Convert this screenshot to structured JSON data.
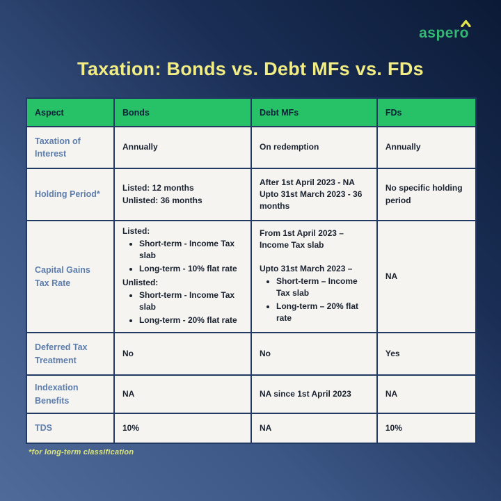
{
  "logo": {
    "text": "aspero",
    "caret_icon": "chevron-up"
  },
  "title": "Taxation: Bonds vs. Debt MFs vs. FDs",
  "footnote": "*for long-term classification",
  "colors": {
    "header_green": "#27c268",
    "aspect_blue": "#5d7dad",
    "title_yellow": "#f1ed84",
    "footnote_yellow": "#dce57c",
    "logo_green": "#33b873",
    "caret_yellow": "#e3e44c",
    "cell_background": "#f5f4f0",
    "border_navy": "#223a63",
    "background_dark": "#0b1a36",
    "background_light": "#4f6a99"
  },
  "table": {
    "columns": [
      "Aspect",
      "Bonds",
      "Debt MFs",
      "FDs"
    ],
    "column_widths_pct": [
      19.5,
      30.5,
      28,
      22
    ],
    "rows": [
      {
        "aspect": "Taxation of Interest",
        "cells": [
          [
            {
              "text": "Annually"
            }
          ],
          [
            {
              "text": "On redemption"
            }
          ],
          [
            {
              "text": "Annually"
            }
          ]
        ]
      },
      {
        "aspect": "Holding Period*",
        "cells": [
          [
            {
              "text": "Listed: 12 months"
            },
            {
              "text": "Unlisted: 36 months"
            }
          ],
          [
            {
              "text": "After 1st April 2023 - NA"
            },
            {
              "text": "Upto 31st March 2023 - 36 months"
            }
          ],
          [
            {
              "text": "No specific holding period"
            }
          ]
        ]
      },
      {
        "aspect": "Capital Gains Tax Rate",
        "cells": [
          [
            {
              "text": "Listed:"
            },
            {
              "bullets": [
                "Short-term - Income Tax slab",
                "Long-term - 10% flat rate"
              ]
            },
            {
              "text": "Unlisted:"
            },
            {
              "bullets": [
                "Short-term - Income Tax slab",
                "Long-term - 20% flat rate"
              ]
            }
          ],
          [
            {
              "text": "From 1st April 2023 – Income Tax slab"
            },
            {
              "gap": true
            },
            {
              "text": "Upto 31st March 2023 –"
            },
            {
              "bullets": [
                "Short-term – Income Tax slab",
                "Long-term – 20% flat rate"
              ]
            }
          ],
          [
            {
              "text": "NA"
            }
          ]
        ]
      },
      {
        "aspect": "Deferred Tax Treatment",
        "cells": [
          [
            {
              "text": "No"
            }
          ],
          [
            {
              "text": "No"
            }
          ],
          [
            {
              "text": "Yes"
            }
          ]
        ]
      },
      {
        "aspect": "Indexation Benefits",
        "cells": [
          [
            {
              "text": "NA"
            }
          ],
          [
            {
              "text": "NA since 1st April 2023"
            }
          ],
          [
            {
              "text": "NA"
            }
          ]
        ]
      },
      {
        "aspect": "TDS",
        "cells": [
          [
            {
              "text": "10%"
            }
          ],
          [
            {
              "text": "NA"
            }
          ],
          [
            {
              "text": "10%"
            }
          ]
        ]
      }
    ]
  }
}
